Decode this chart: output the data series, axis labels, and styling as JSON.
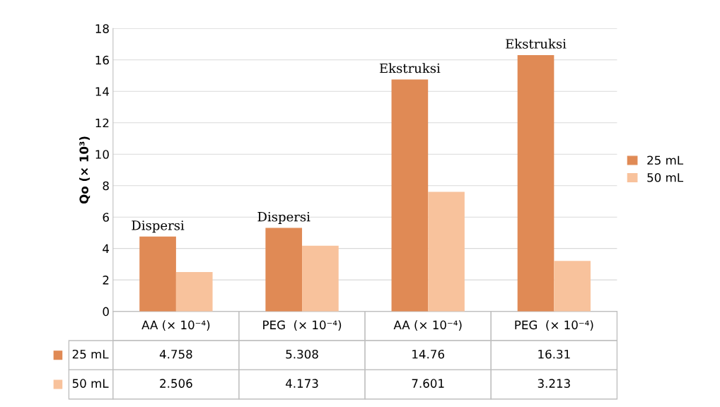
{
  "chart_data": {
    "type": "bar",
    "ylabel": "Qo (× 10³)",
    "categories": [
      "AA (× 10⁻⁴)",
      "PEG  (× 10⁻⁴)",
      "AA (× 10⁻⁴)",
      "PEG  (× 10⁻⁴)"
    ],
    "series": [
      {
        "name": "25 mL",
        "color": "#e08a55",
        "values": [
          4.758,
          5.308,
          14.76,
          16.31
        ]
      },
      {
        "name": "50 mL",
        "color": "#f8c29c",
        "values": [
          2.506,
          4.173,
          7.601,
          3.213
        ]
      }
    ],
    "annotations": [
      "Dispersi",
      "Dispersi",
      "Ekstruksi",
      "Ekstruksi"
    ],
    "ylim": [
      0,
      18
    ],
    "yticks": [
      0,
      2,
      4,
      6,
      8,
      10,
      12,
      14,
      16,
      18
    ],
    "grid": "y",
    "legend": "right",
    "data_labels": true
  }
}
